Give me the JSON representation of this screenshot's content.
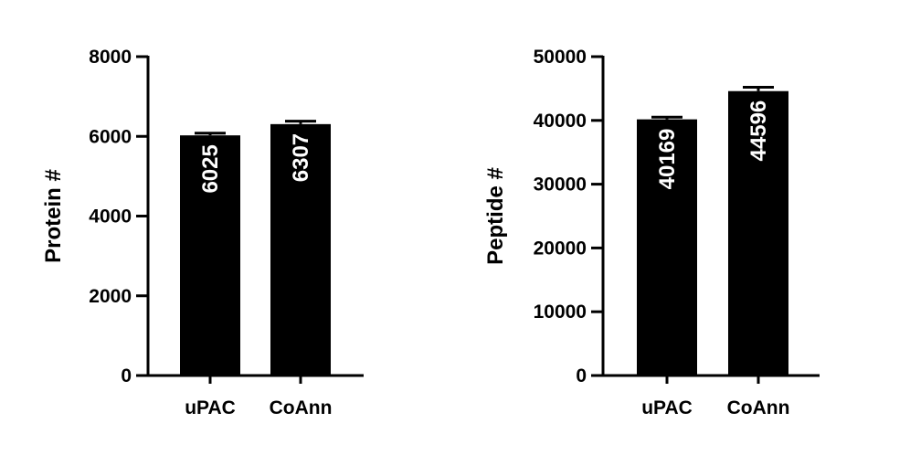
{
  "chart_data": [
    {
      "type": "bar",
      "categories": [
        "uPAC",
        "CoAnn"
      ],
      "values": [
        6025,
        6307
      ],
      "error_upper": [
        6080,
        6380
      ],
      "value_labels": [
        "6025",
        "6307"
      ],
      "title": "",
      "xlabel": "",
      "ylabel": "Protein #",
      "ylim": [
        0,
        8000
      ],
      "yticks": [
        0,
        2000,
        4000,
        6000,
        8000
      ],
      "ytick_labels": [
        "0",
        "2000",
        "4000",
        "6000",
        "8000"
      ],
      "grid": false,
      "bar_color": "#000000",
      "label_color": "#ffffff"
    },
    {
      "type": "bar",
      "categories": [
        "uPAC",
        "CoAnn"
      ],
      "values": [
        40169,
        44596
      ],
      "error_upper": [
        40500,
        45200
      ],
      "value_labels": [
        "40169",
        "44596"
      ],
      "title": "",
      "xlabel": "",
      "ylabel": "Peptide #",
      "ylim": [
        0,
        50000
      ],
      "yticks": [
        0,
        10000,
        20000,
        30000,
        40000,
        50000
      ],
      "ytick_labels": [
        "0",
        "10000",
        "20000",
        "30000",
        "40000",
        "50000"
      ],
      "grid": false,
      "bar_color": "#000000",
      "label_color": "#ffffff"
    }
  ]
}
